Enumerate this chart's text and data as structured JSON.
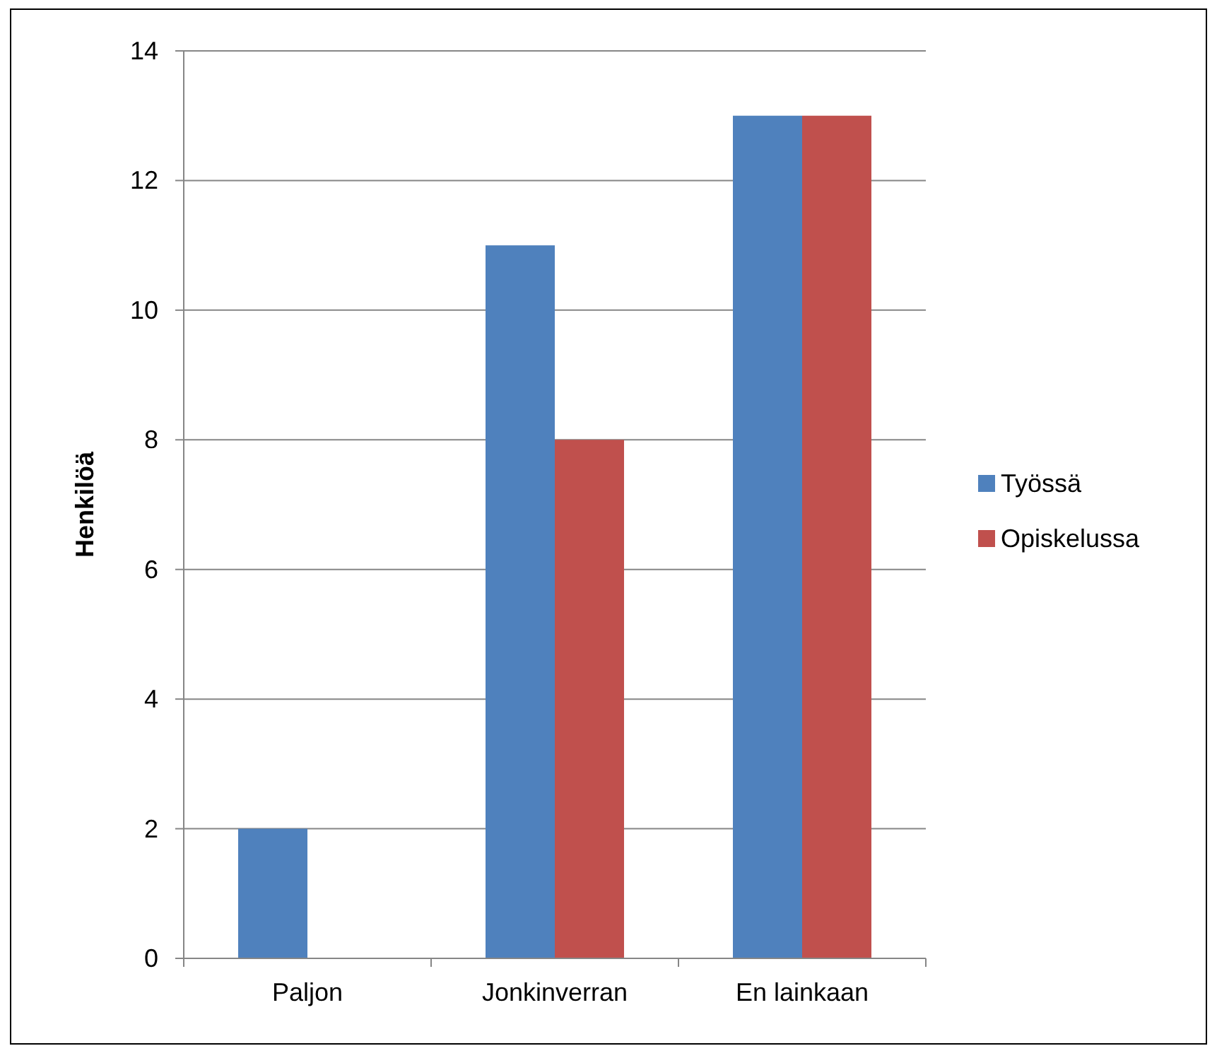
{
  "chart_data": {
    "type": "bar",
    "ylabel": "Henkilöä",
    "categories": [
      "Paljon",
      "Jonkinverran",
      "En lainkaan"
    ],
    "series": [
      {
        "name": "Työssä",
        "color": "#4f81bd",
        "values": [
          2,
          11,
          13
        ]
      },
      {
        "name": "Opiskelussa",
        "color": "#c0504d",
        "values": [
          0,
          8,
          13
        ]
      }
    ],
    "ylim": [
      0,
      14
    ],
    "yticks": [
      0,
      2,
      4,
      6,
      8,
      10,
      12,
      14
    ],
    "grid": "y",
    "legend": "right"
  }
}
